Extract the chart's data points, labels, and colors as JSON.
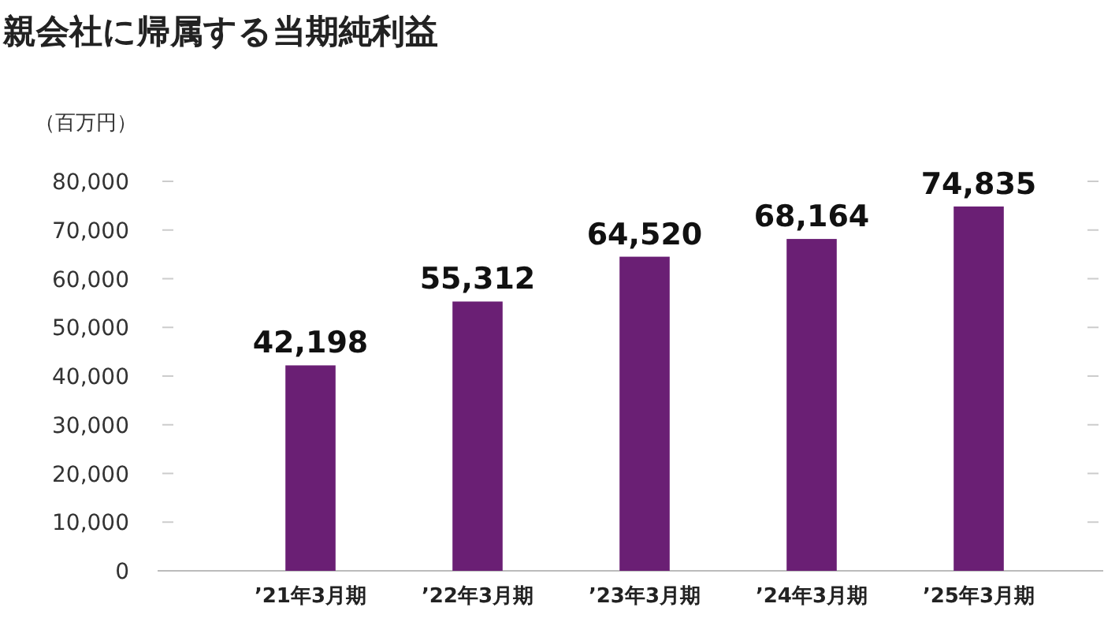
{
  "chart_data": {
    "type": "bar",
    "title": "親会社に帰属する当期純利益",
    "ylabel": "（百万円）",
    "categories": [
      "’21年3月期",
      "’22年3月期",
      "’23年3月期",
      "’24年3月期",
      "’25年3月期"
    ],
    "values": [
      42198,
      55312,
      64520,
      68164,
      74835
    ],
    "color": "#6a1f74",
    "value_labels": [
      "42,198",
      "55,312",
      "64,520",
      "68,164",
      "74,835"
    ],
    "ylim": [
      0,
      80000
    ],
    "yticks": [
      {
        "value": 0,
        "label": "0"
      },
      {
        "value": 10000,
        "label": "10,000"
      },
      {
        "value": 20000,
        "label": "20,000"
      },
      {
        "value": 30000,
        "label": "30,000"
      },
      {
        "value": 40000,
        "label": "40,000"
      },
      {
        "value": 50000,
        "label": "50,000"
      },
      {
        "value": 60000,
        "label": "60,000"
      },
      {
        "value": 70000,
        "label": "70,000"
      },
      {
        "value": 80000,
        "label": "80,000"
      }
    ],
    "grid": false
  }
}
